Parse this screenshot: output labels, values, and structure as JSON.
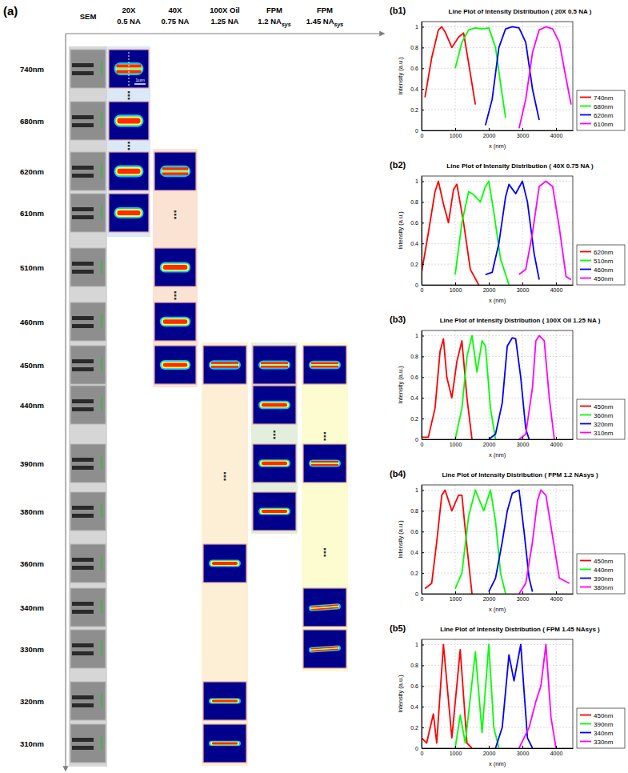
{
  "panel_a": {
    "label": "(a)",
    "columns": [
      {
        "title": "SEM"
      },
      {
        "title": "20X",
        "subtitle": "0.5 NA"
      },
      {
        "title": "40X",
        "subtitle": "0.75 NA"
      },
      {
        "title": "100X Oil",
        "subtitle": "1.25 NA"
      },
      {
        "title": "FPM",
        "subtitle": "1.2 NA",
        "subscript": "sys"
      },
      {
        "title": "FPM",
        "subtitle": "1.45 NA",
        "subscript": "sys"
      }
    ],
    "rows": [
      "740nm",
      "680nm",
      "620nm",
      "610nm",
      "510nm",
      "460nm",
      "450nm",
      "440nm",
      "390nm",
      "380nm",
      "360nm",
      "340nm",
      "330nm",
      "320nm",
      "310nm"
    ],
    "scale_bar": "1um",
    "ellipsis": "⋮"
  },
  "chart_data": [
    {
      "type": "line",
      "panel": "(b1)",
      "title": "Line Plot of Intensity Distribution ( 20X 0.5 NA )",
      "x_label": "x (nm)",
      "y_label": "Intensity (a.u.)",
      "xlim": [
        0,
        4500
      ],
      "ylim": [
        0,
        1.05
      ],
      "xticks": [
        0,
        1000,
        2000,
        3000,
        4000
      ],
      "yticks": [
        0,
        0.2,
        0.4,
        0.6,
        0.8,
        1
      ],
      "grid": true,
      "legend": "lower right",
      "series": [
        {
          "name": "740nm",
          "color": "#ff0000",
          "x": [
            100,
            300,
            500,
            600,
            700,
            900,
            1100,
            1250,
            1400,
            1600
          ],
          "values": [
            0.32,
            0.7,
            0.97,
            1.0,
            0.95,
            0.8,
            0.9,
            0.94,
            0.65,
            0.25
          ]
        },
        {
          "name": "680nm",
          "color": "#00ff00",
          "x": [
            1000,
            1200,
            1400,
            1600,
            1800,
            2000,
            2200,
            2350,
            2500
          ],
          "values": [
            0.6,
            0.85,
            0.97,
            0.99,
            0.98,
            0.99,
            0.8,
            0.45,
            0.12
          ]
        },
        {
          "name": "620nm",
          "color": "#0000ff",
          "x": [
            1900,
            2100,
            2300,
            2500,
            2700,
            2900,
            3100,
            3300,
            3500
          ],
          "values": [
            0.05,
            0.3,
            0.8,
            0.98,
            1.0,
            0.99,
            0.85,
            0.4,
            0.1
          ]
        },
        {
          "name": "610nm",
          "color": "#ff00ff",
          "x": [
            2900,
            3100,
            3300,
            3500,
            3700,
            3900,
            4100,
            4300,
            4450
          ],
          "values": [
            0.02,
            0.3,
            0.75,
            0.97,
            1.0,
            0.98,
            0.85,
            0.5,
            0.25
          ]
        }
      ]
    },
    {
      "type": "line",
      "panel": "(b2)",
      "title": "Line Plot of Intensity Distribution ( 40X 0.75 NA )",
      "x_label": "x (nm)",
      "y_label": "Intensity (a.u.)",
      "xlim": [
        0,
        4500
      ],
      "ylim": [
        0,
        1.05
      ],
      "xticks": [
        0,
        1000,
        2000,
        3000,
        4000
      ],
      "yticks": [
        0,
        0.2,
        0.4,
        0.6,
        0.8,
        1
      ],
      "grid": true,
      "legend": "lower right",
      "series": [
        {
          "name": "620nm",
          "color": "#ff0000",
          "x": [
            0,
            200,
            400,
            500,
            650,
            800,
            950,
            1050,
            1250,
            1450,
            1700
          ],
          "values": [
            0.12,
            0.5,
            0.9,
            1.0,
            0.78,
            0.6,
            0.92,
            0.97,
            0.6,
            0.15,
            0.0
          ]
        },
        {
          "name": "510nm",
          "color": "#00ff00",
          "x": [
            1000,
            1200,
            1400,
            1550,
            1750,
            1900,
            2000,
            2150,
            2350,
            2600
          ],
          "values": [
            0.1,
            0.6,
            0.9,
            0.87,
            0.8,
            0.95,
            1.0,
            0.7,
            0.25,
            0.0
          ]
        },
        {
          "name": "460nm",
          "color": "#0000ff",
          "x": [
            1900,
            2100,
            2300,
            2500,
            2600,
            2800,
            3000,
            3150,
            3350,
            3500
          ],
          "values": [
            0.1,
            0.12,
            0.4,
            0.85,
            0.97,
            0.88,
            1.0,
            0.8,
            0.3,
            0.05
          ]
        },
        {
          "name": "450nm",
          "color": "#ff00ff",
          "x": [
            2900,
            3100,
            3300,
            3500,
            3700,
            3900,
            4100,
            4300,
            4450
          ],
          "values": [
            0.1,
            0.15,
            0.5,
            0.95,
            1.0,
            0.95,
            0.55,
            0.08,
            0.05
          ]
        }
      ]
    },
    {
      "type": "line",
      "panel": "(b3)",
      "title": "Line Plot of Intensity Distribution ( 100X Oil 1.25 NA )",
      "x_label": "x (nm)",
      "y_label": "Intensity (a.u.)",
      "xlim": [
        0,
        4500
      ],
      "ylim": [
        0,
        1.05
      ],
      "xticks": [
        0,
        1000,
        2000,
        3000,
        4000
      ],
      "yticks": [
        0,
        0.2,
        0.4,
        0.6,
        0.8,
        1
      ],
      "grid": true,
      "legend": "lower right",
      "series": [
        {
          "name": "450nm",
          "color": "#ff0000",
          "x": [
            0,
            200,
            400,
            550,
            650,
            750,
            900,
            1050,
            1200,
            1350,
            1500
          ],
          "values": [
            0.02,
            0.02,
            0.3,
            0.85,
            0.97,
            0.6,
            0.4,
            0.75,
            0.95,
            0.4,
            0.0
          ]
        },
        {
          "name": "360nm",
          "color": "#00ff00",
          "x": [
            1000,
            1200,
            1350,
            1500,
            1650,
            1800,
            1900,
            2050,
            2200
          ],
          "values": [
            0.0,
            0.3,
            0.8,
            1.0,
            0.65,
            0.95,
            0.9,
            0.3,
            0.0
          ]
        },
        {
          "name": "320nm",
          "color": "#0000ff",
          "x": [
            2000,
            2200,
            2400,
            2550,
            2700,
            2800,
            2950,
            3100,
            3200
          ],
          "values": [
            0.0,
            0.05,
            0.35,
            0.9,
            0.98,
            0.97,
            0.6,
            0.1,
            0.0
          ]
        },
        {
          "name": "310nm",
          "color": "#ff00ff",
          "x": [
            2900,
            3100,
            3300,
            3400,
            3500,
            3650,
            3800,
            3950
          ],
          "values": [
            0.0,
            0.05,
            0.5,
            0.95,
            1.0,
            0.95,
            0.4,
            0.0
          ]
        }
      ]
    },
    {
      "type": "line",
      "panel": "(b4)",
      "title": "Line Plot of Intensity Distribution ( FPM 1.2 NAsys )",
      "x_label": "x (nm)",
      "y_label": "Intensity (a.u.)",
      "xlim": [
        0,
        4500
      ],
      "ylim": [
        0,
        1.05
      ],
      "xticks": [
        0,
        1000,
        2000,
        3000,
        4000
      ],
      "yticks": [
        0,
        0.2,
        0.4,
        0.6,
        0.8,
        1
      ],
      "grid": true,
      "legend": "lower right",
      "series": [
        {
          "name": "450nm",
          "color": "#ff0000",
          "x": [
            100,
            300,
            450,
            600,
            700,
            900,
            1100,
            1200,
            1350,
            1500
          ],
          "values": [
            0.05,
            0.1,
            0.5,
            0.95,
            1.0,
            0.8,
            0.95,
            0.95,
            0.45,
            0.0
          ]
        },
        {
          "name": "440nm",
          "color": "#00ff00",
          "x": [
            1000,
            1200,
            1400,
            1600,
            1850,
            2050,
            2200,
            2350,
            2500
          ],
          "values": [
            0.05,
            0.2,
            0.75,
            1.0,
            0.8,
            1.0,
            0.7,
            0.2,
            0.0
          ]
        },
        {
          "name": "390nm",
          "color": "#0000ff",
          "x": [
            2000,
            2200,
            2400,
            2550,
            2700,
            2900,
            3050,
            3200,
            3300
          ],
          "values": [
            0.02,
            0.15,
            0.5,
            0.8,
            0.97,
            1.0,
            0.6,
            0.15,
            0.02
          ]
        },
        {
          "name": "380nm",
          "color": "#ff00ff",
          "x": [
            2900,
            3100,
            3300,
            3450,
            3550,
            3700,
            3900,
            4100,
            4400
          ],
          "values": [
            0.0,
            0.1,
            0.5,
            0.9,
            1.0,
            0.95,
            0.55,
            0.15,
            0.1
          ]
        }
      ]
    },
    {
      "type": "line",
      "panel": "(b5)",
      "title": "Line Plot of Intensity Distribution ( FPM 1.45 NAsys )",
      "x_label": "x (nm)",
      "y_label": "Intensity (a.u.)",
      "xlim": [
        0,
        4500
      ],
      "ylim": [
        0,
        1.05
      ],
      "xticks": [
        0,
        1000,
        2000,
        3000,
        4000
      ],
      "yticks": [
        0,
        0.2,
        0.4,
        0.6,
        0.8,
        1
      ],
      "grid": true,
      "legend": "lower right",
      "series": [
        {
          "name": "450nm",
          "color": "#ff0000",
          "x": [
            0,
            150,
            350,
            450,
            650,
            900,
            1150,
            1350,
            1500
          ],
          "values": [
            0.1,
            0.05,
            0.33,
            0.05,
            1.0,
            0.1,
            0.95,
            0.05,
            0.0
          ]
        },
        {
          "name": "390nm",
          "color": "#00ff00",
          "x": [
            1000,
            1150,
            1300,
            1600,
            1800,
            2000,
            2150,
            2300
          ],
          "values": [
            0.0,
            0.32,
            0.05,
            0.93,
            0.15,
            1.0,
            0.2,
            0.0
          ]
        },
        {
          "name": "340nm",
          "color": "#0000ff",
          "x": [
            2200,
            2400,
            2600,
            2750,
            2950,
            3150,
            3300
          ],
          "values": [
            0.0,
            0.2,
            0.9,
            0.65,
            1.0,
            0.1,
            0.0
          ]
        },
        {
          "name": "330nm",
          "color": "#ff00ff",
          "x": [
            2900,
            3200,
            3400,
            3550,
            3700,
            3850,
            4000
          ],
          "values": [
            0.0,
            0.2,
            0.45,
            0.6,
            1.0,
            0.3,
            0.0
          ]
        }
      ]
    }
  ]
}
